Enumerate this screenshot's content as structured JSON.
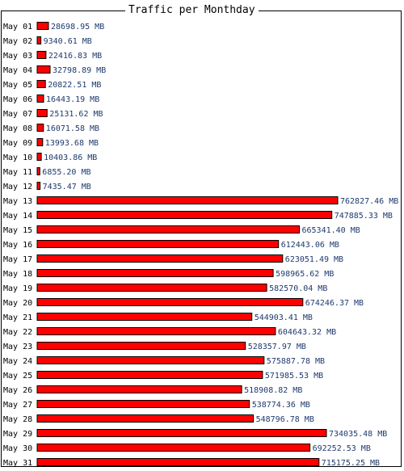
{
  "chart_data": {
    "type": "bar",
    "orientation": "horizontal",
    "title": "Traffic per Monthday",
    "categories": [
      "May 01",
      "May 02",
      "May 03",
      "May 04",
      "May 05",
      "May 06",
      "May 07",
      "May 08",
      "May 09",
      "May 10",
      "May 11",
      "May 12",
      "May 13",
      "May 14",
      "May 15",
      "May 16",
      "May 17",
      "May 18",
      "May 19",
      "May 20",
      "May 21",
      "May 22",
      "May 23",
      "May 24",
      "May 25",
      "May 26",
      "May 27",
      "May 28",
      "May 29",
      "May 30",
      "May 31"
    ],
    "values": [
      28698.95,
      9340.61,
      22416.83,
      32798.89,
      20822.51,
      16443.19,
      25131.62,
      16071.58,
      13993.68,
      10403.86,
      6855.2,
      7435.47,
      762827.46,
      747885.33,
      665341.4,
      612443.06,
      623051.49,
      598965.62,
      582570.04,
      674246.37,
      544903.41,
      604643.32,
      528357.97,
      575887.78,
      571985.53,
      518908.82,
      538774.36,
      548796.78,
      734035.48,
      692252.53,
      715175.25
    ],
    "value_labels": [
      "28698.95 MB",
      "9340.61 MB",
      "22416.83 MB",
      "32798.89 MB",
      "20822.51 MB",
      "16443.19 MB",
      "25131.62 MB",
      "16071.58 MB",
      "13993.68 MB",
      "10403.86 MB",
      "6855.20 MB",
      "7435.47 MB",
      "762827.46 MB",
      "747885.33 MB",
      "665341.40 MB",
      "612443.06 MB",
      "623051.49 MB",
      "598965.62 MB",
      "582570.04 MB",
      "674246.37 MB",
      "544903.41 MB",
      "604643.32 MB",
      "528357.97 MB",
      "575887.78 MB",
      "571985.53 MB",
      "518908.82 MB",
      "538774.36 MB",
      "548796.78 MB",
      "734035.48 MB",
      "692252.53 MB",
      "715175.25 MB"
    ],
    "colors": {
      "bar": "#ff0000",
      "bar_border": "#000000",
      "value_text": "#1e3a6e"
    },
    "grid": false,
    "legend": "none"
  }
}
